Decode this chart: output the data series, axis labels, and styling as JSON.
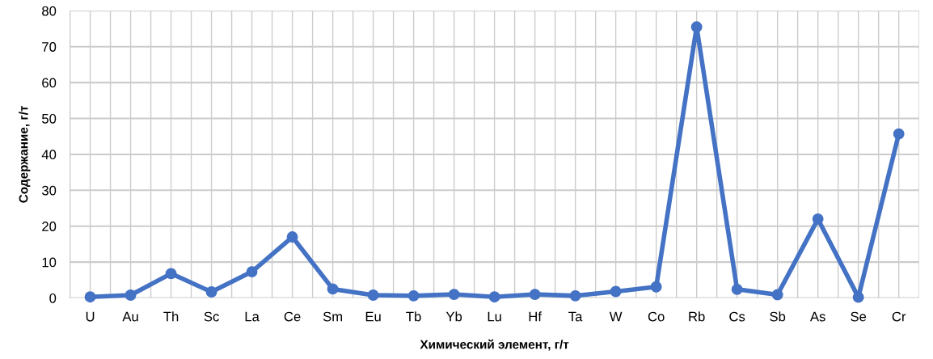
{
  "chart_data": {
    "type": "line",
    "xlabel": "Химический элемент, г/т",
    "ylabel": "Содержание, г/т",
    "categories": [
      "U",
      "Au",
      "Th",
      "Sc",
      "La",
      "Ce",
      "Sm",
      "Eu",
      "Tb",
      "Yb",
      "Lu",
      "Hf",
      "Ta",
      "W",
      "Co",
      "Rb",
      "Cs",
      "Sb",
      "As",
      "Se",
      "Cr"
    ],
    "series": [
      {
        "color": "#4472c4",
        "values": [
          0.3,
          0.8,
          6.8,
          1.7,
          7.3,
          17,
          2.5,
          0.8,
          0.6,
          1.0,
          0.3,
          1.0,
          0.6,
          1.8,
          3.1,
          75.5,
          2.4,
          0.9,
          22,
          0.2,
          45.7
        ]
      }
    ],
    "ylim": [
      0,
      80
    ],
    "yticks": [
      0,
      10,
      20,
      30,
      40,
      50,
      60,
      70,
      80
    ],
    "grid": true,
    "marker": "circle",
    "line_style": "solid"
  }
}
